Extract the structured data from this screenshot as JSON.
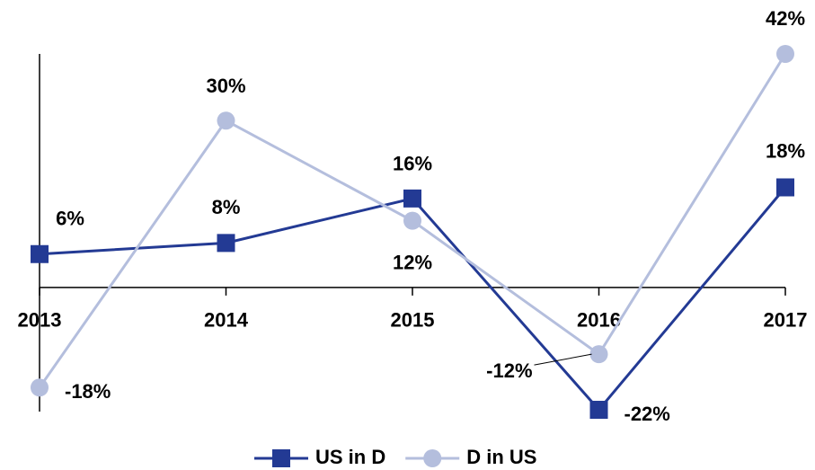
{
  "chart_data": {
    "type": "line",
    "categories": [
      "2013",
      "2014",
      "2015",
      "2016",
      "2017"
    ],
    "series": [
      {
        "name": "US in D",
        "color": "#233a94",
        "marker": "square",
        "values": [
          6,
          8,
          16,
          -22,
          18
        ],
        "value_labels": [
          "6%",
          "8%",
          "16%",
          "-22%",
          "18%"
        ]
      },
      {
        "name": "D in US",
        "color": "#b4bedd",
        "marker": "circle",
        "values": [
          -18,
          30,
          12,
          -12,
          42
        ],
        "value_labels": [
          "-18%",
          "30%",
          "12%",
          "-12%",
          "42%"
        ]
      }
    ],
    "ylim": [
      -22,
      42
    ],
    "legend": "bottom"
  }
}
